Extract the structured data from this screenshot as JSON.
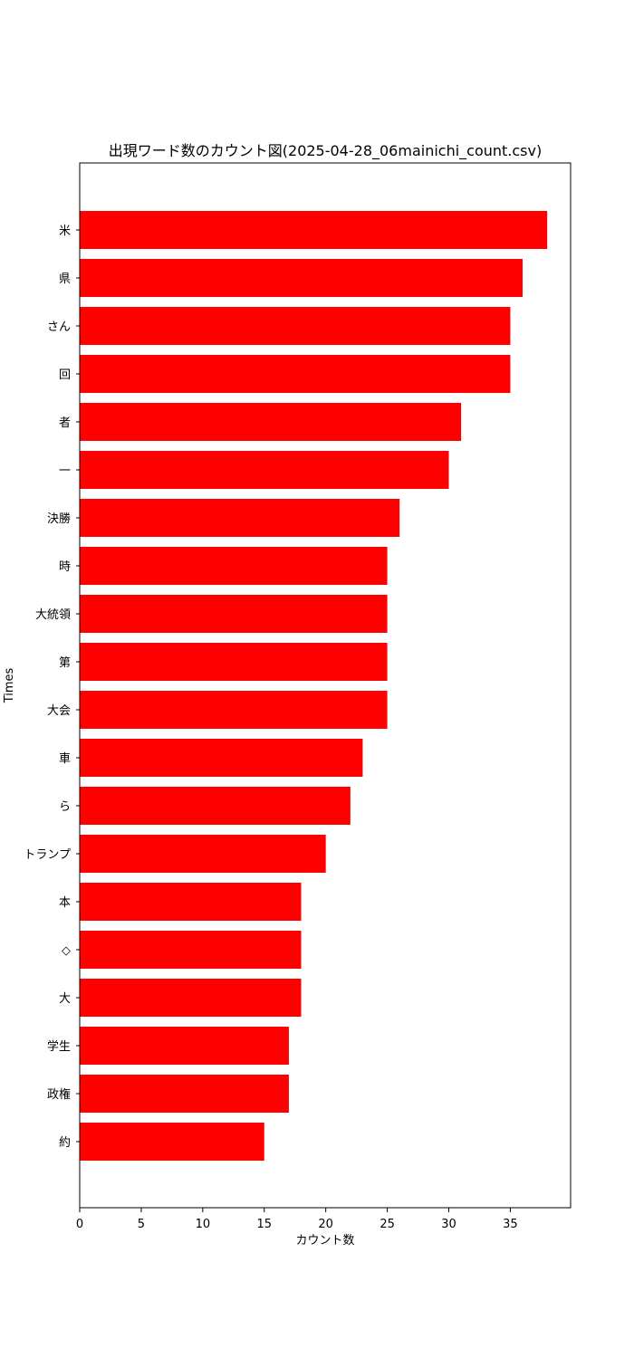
{
  "chart_data": {
    "type": "bar",
    "orientation": "horizontal",
    "title": "出現ワード数のカウント図(2025-04-28_06mainichi_count.csv)",
    "xlabel": "カウント数",
    "ylabel": "Times",
    "categories": [
      "米",
      "県",
      "さん",
      "回",
      "者",
      "一",
      "決勝",
      "時",
      "大統領",
      "第",
      "大会",
      "車",
      "ら",
      "トランプ",
      "本",
      "◇",
      "大",
      "学生",
      "政権",
      "約"
    ],
    "values": [
      38,
      36,
      35,
      35,
      31,
      30,
      26,
      25,
      25,
      25,
      25,
      23,
      22,
      20,
      18,
      18,
      18,
      17,
      17,
      15
    ],
    "xlim": [
      0,
      39.9
    ],
    "xticks": [
      "0",
      "5",
      "10",
      "15",
      "20",
      "25",
      "30",
      "35"
    ],
    "grid": false,
    "bar_color": "#ff0000"
  }
}
